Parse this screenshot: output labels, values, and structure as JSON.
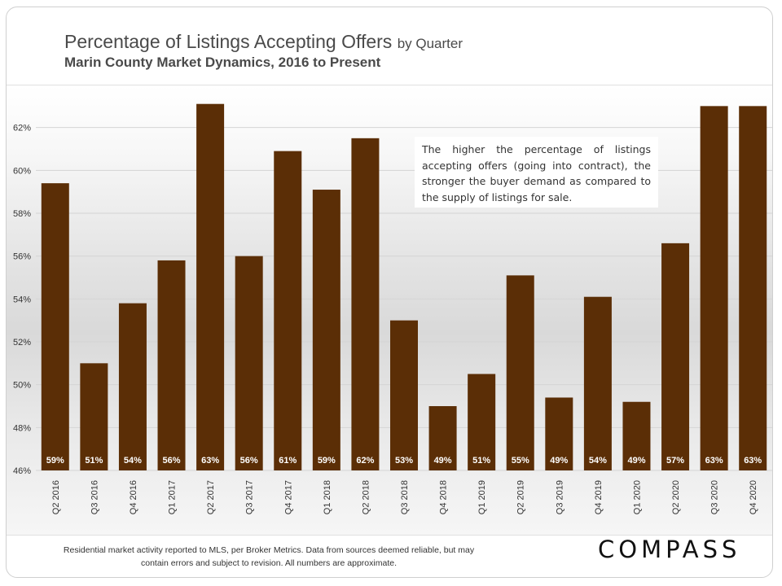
{
  "header": {
    "title_main": "Percentage of Listings Accepting Offers",
    "title_suffix": "by Quarter",
    "subtitle": "Marin County Market Dynamics, 2016 to Present"
  },
  "annotation": "The higher the percentage of listings accepting offers (going into contract), the stronger the buyer demand as compared to the supply of listings for sale.",
  "footer": "Residential market activity reported to MLS, per Broker Metrics. Data from sources deemed reliable, but may contain errors and subject to revision. All numbers are approximate.",
  "logo": "COMPASS",
  "colors": {
    "bar": "#5b2e06",
    "label": "#ffffff",
    "axis_text": "#333333"
  },
  "chart_data": {
    "type": "bar",
    "title": "Percentage of Listings Accepting Offers by Quarter",
    "subtitle": "Marin County Market Dynamics, 2016 to Present",
    "xlabel": "",
    "ylabel": "",
    "ylim": [
      46,
      64
    ],
    "yticks": [
      "46%",
      "48%",
      "50%",
      "52%",
      "54%",
      "56%",
      "58%",
      "60%",
      "62%"
    ],
    "ytick_values": [
      46,
      48,
      50,
      52,
      54,
      56,
      58,
      60,
      62
    ],
    "grid": true,
    "categories": [
      "Q2 2016",
      "Q3 2016",
      "Q4 2016",
      "Q1 2017",
      "Q2 2017",
      "Q3 2017",
      "Q4 2017",
      "Q1 2018",
      "Q2 2018",
      "Q3 2018",
      "Q4 2018",
      "Q1 2019",
      "Q2 2019",
      "Q3 2019",
      "Q4 2019",
      "Q1 2020",
      "Q2 2020",
      "Q3 2020",
      "Q4 2020"
    ],
    "values": [
      59.4,
      51.0,
      53.8,
      55.8,
      63.1,
      56.0,
      60.9,
      59.1,
      61.5,
      53.0,
      49.0,
      50.5,
      55.1,
      49.4,
      54.1,
      49.2,
      56.6,
      63.0,
      63.0
    ],
    "data_labels": [
      "59%",
      "51%",
      "54%",
      "56%",
      "63%",
      "56%",
      "61%",
      "59%",
      "62%",
      "53%",
      "49%",
      "51%",
      "55%",
      "49%",
      "54%",
      "49%",
      "57%",
      "63%",
      "63%"
    ]
  }
}
